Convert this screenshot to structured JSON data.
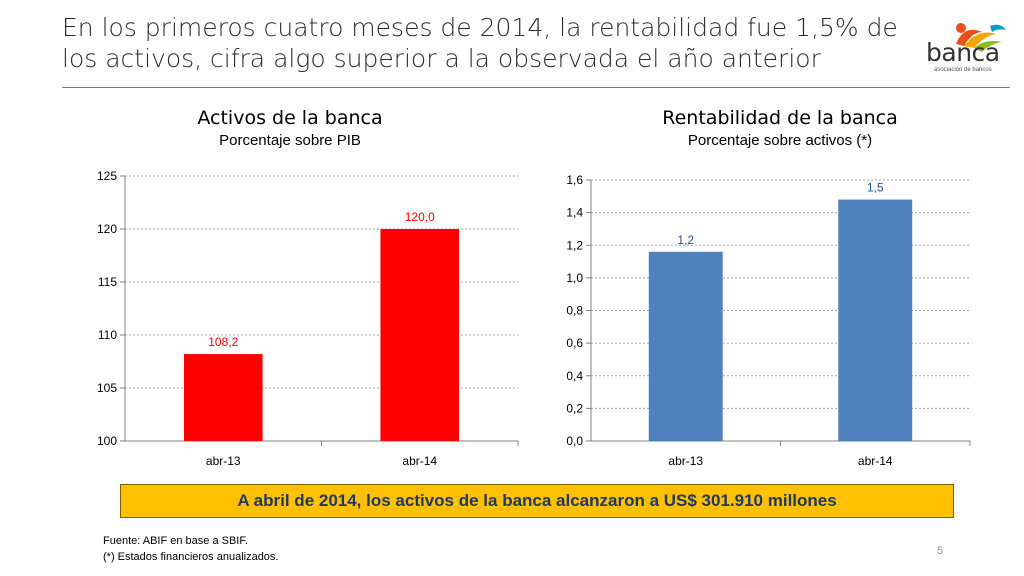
{
  "header": {
    "title": "En los primeros cuatro meses de 2014, la rentabilidad fue 1,5% de los activos, cifra algo superior a la observada el año anterior"
  },
  "logo": {
    "name": "banca",
    "subtitle": "asociación de bancos",
    "colors": [
      "#e94e1b",
      "#f7a600",
      "#8cbf26",
      "#00a0c6"
    ]
  },
  "charts": [
    {
      "heading": "Activos de la banca",
      "subheading": "Porcentaje sobre PIB"
    },
    {
      "heading": "Rentabilidad de la banca",
      "subheading": "Porcentaje sobre activos (*)"
    }
  ],
  "chart_data": [
    {
      "type": "bar",
      "title": "Activos de la banca",
      "subtitle": "Porcentaje sobre PIB",
      "categories": [
        "abr-13",
        "abr-14"
      ],
      "values": [
        108.2,
        120.0
      ],
      "value_labels": [
        "108,2",
        "120,0"
      ],
      "ylim": [
        100,
        125
      ],
      "yticks": [
        100,
        105,
        110,
        115,
        120,
        125
      ],
      "ytick_labels": [
        "100",
        "105",
        "110",
        "115",
        "120",
        "125"
      ],
      "color": "#ff0000",
      "label_color": "#ff0000",
      "grid": true
    },
    {
      "type": "bar",
      "title": "Rentabilidad de la banca",
      "subtitle": "Porcentaje sobre activos (*)",
      "categories": [
        "abr-13",
        "abr-14"
      ],
      "values": [
        1.16,
        1.48
      ],
      "value_labels": [
        "1,2",
        "1,5"
      ],
      "ylim": [
        0,
        1.6
      ],
      "yticks": [
        0,
        0.2,
        0.4,
        0.6,
        0.8,
        1.0,
        1.2,
        1.4,
        1.6
      ],
      "ytick_labels": [
        "0,0",
        "0,2",
        "0,4",
        "0,6",
        "0,8",
        "1,0",
        "1,2",
        "1,4",
        "1,6"
      ],
      "color": "#4f81bd",
      "label_color": "#1f4e9c",
      "grid": true
    }
  ],
  "banner": {
    "text": "A abril de 2014, los activos de la banca alcanzaron a US$ 301.910 millones"
  },
  "footnotes": {
    "source": "Fuente: ABIF en base a SBIF.",
    "note": "(*) Estados financieros anualizados."
  },
  "page": {
    "number": "5"
  }
}
